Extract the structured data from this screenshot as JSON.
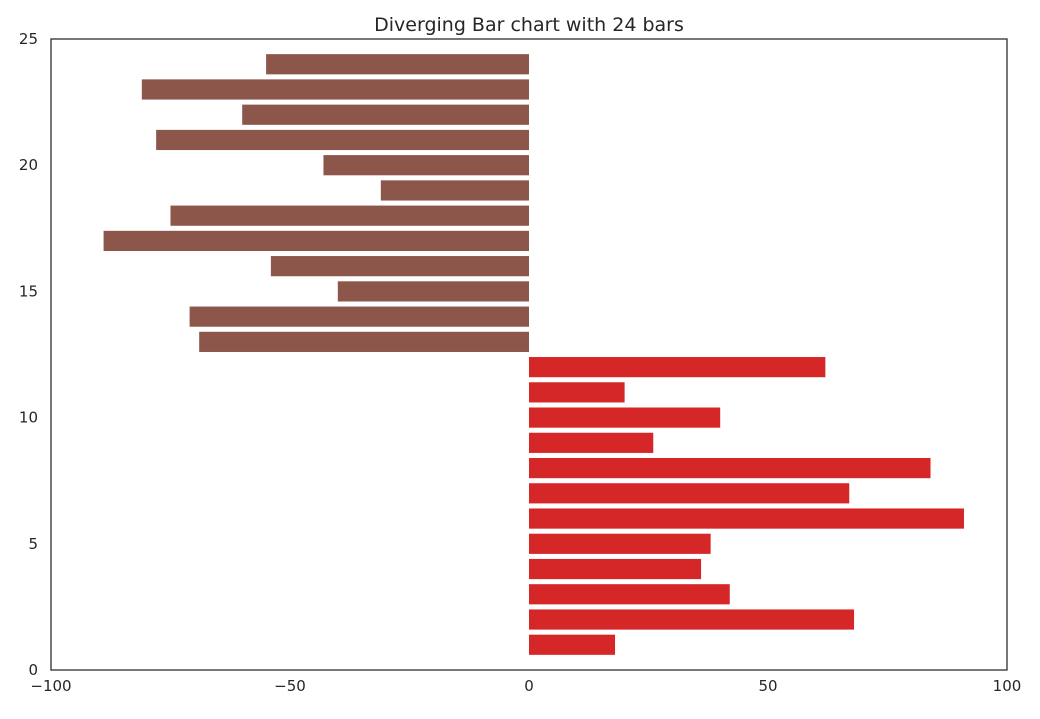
{
  "chart_data": {
    "type": "bar",
    "orientation": "horizontal",
    "title": "Diverging Bar chart with 24 bars",
    "xlabel": "",
    "ylabel": "",
    "xlim": [
      -100,
      100
    ],
    "ylim": [
      0,
      25
    ],
    "grid": false,
    "x_ticks": [
      -100,
      -50,
      0,
      50,
      100
    ],
    "x_tick_labels": [
      "−100",
      "−50",
      "0",
      "50",
      "100"
    ],
    "y_ticks": [
      0,
      5,
      10,
      15,
      20,
      25
    ],
    "y_tick_labels": [
      "0",
      "5",
      "10",
      "15",
      "20",
      "25"
    ],
    "colors": {
      "positive": "#d62728",
      "negative": "#8c564b",
      "axis": "#262626"
    },
    "categories": [
      1,
      2,
      3,
      4,
      5,
      6,
      7,
      8,
      9,
      10,
      11,
      12,
      13,
      14,
      15,
      16,
      17,
      18,
      19,
      20,
      21,
      22,
      23,
      24
    ],
    "values": [
      18,
      68,
      42,
      36,
      38,
      91,
      67,
      84,
      26,
      40,
      20,
      62,
      -69,
      -71,
      -40,
      -54,
      -89,
      -75,
      -31,
      -43,
      -78,
      -60,
      -81,
      -55
    ]
  }
}
